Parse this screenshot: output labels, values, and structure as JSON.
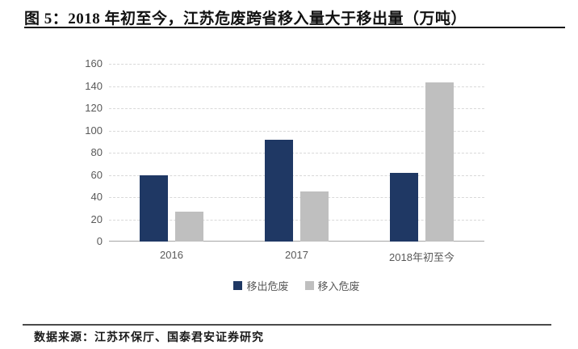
{
  "header": {
    "title": "图 5：2018 年初至今，江苏危废跨省移入量大于移出量（万吨）"
  },
  "chart_data": {
    "type": "bar",
    "title": "",
    "xlabel": "",
    "ylabel": "",
    "categories": [
      "2016",
      "2017",
      "2018年初至今"
    ],
    "series": [
      {
        "key": "moved-out",
        "name": "移出危废",
        "color": "#1f3864",
        "values": [
          60,
          92,
          62
        ]
      },
      {
        "key": "moved-in",
        "name": "移入危废",
        "color": "#bfbfbf",
        "values": [
          27,
          45,
          143
        ]
      }
    ],
    "ylim": [
      0,
      160
    ],
    "ytick_step": 20,
    "yticks": [
      0,
      20,
      40,
      60,
      80,
      100,
      120,
      140,
      160
    ],
    "grid": true,
    "legend_position": "bottom"
  },
  "footer": {
    "source": "数据来源：江苏环保厅、国泰君安证券研究"
  },
  "colors": {
    "bar_blue": "#1f3864",
    "bar_gray": "#bfbfbf",
    "gridline": "#d9d9d9",
    "axis_line": "#a6a6a6",
    "tick_text": "#595959",
    "rule": "#111111"
  }
}
